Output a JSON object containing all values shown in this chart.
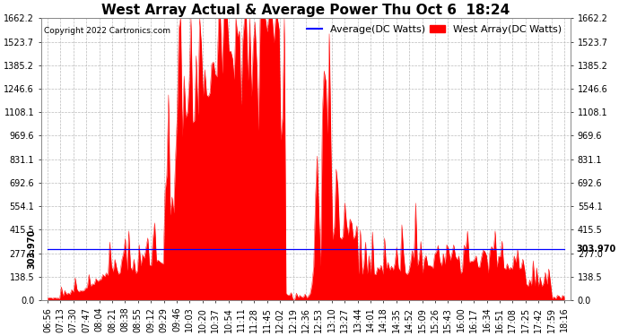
{
  "title": "West Array Actual & Average Power Thu Oct 6  18:24",
  "copyright": "Copyright 2022 Cartronics.com",
  "yticks": [
    0.0,
    138.5,
    277.0,
    415.5,
    554.1,
    692.6,
    831.1,
    969.6,
    1108.1,
    1246.6,
    1385.2,
    1523.7,
    1662.2
  ],
  "ylim": [
    0.0,
    1662.2
  ],
  "hline_value": 303.97,
  "hline_label": "303.970",
  "fill_color": "#ff0000",
  "avg_line_color": "#0000ff",
  "background_color": "#ffffff",
  "grid_color": "#bbbbbb",
  "title_fontsize": 11,
  "tick_fontsize": 7,
  "copyright_fontsize": 6.5,
  "legend_fontsize": 8,
  "xtick_labels": [
    "06:56",
    "07:13",
    "07:30",
    "07:47",
    "08:04",
    "08:21",
    "08:38",
    "08:55",
    "09:12",
    "09:29",
    "09:46",
    "10:03",
    "10:20",
    "10:37",
    "10:54",
    "11:11",
    "11:28",
    "11:45",
    "12:02",
    "12:19",
    "12:36",
    "12:53",
    "13:10",
    "13:27",
    "13:44",
    "14:01",
    "14:18",
    "14:35",
    "14:52",
    "15:09",
    "15:26",
    "15:43",
    "16:00",
    "16:17",
    "16:34",
    "16:51",
    "17:08",
    "17:25",
    "17:42",
    "17:59",
    "18:16"
  ]
}
